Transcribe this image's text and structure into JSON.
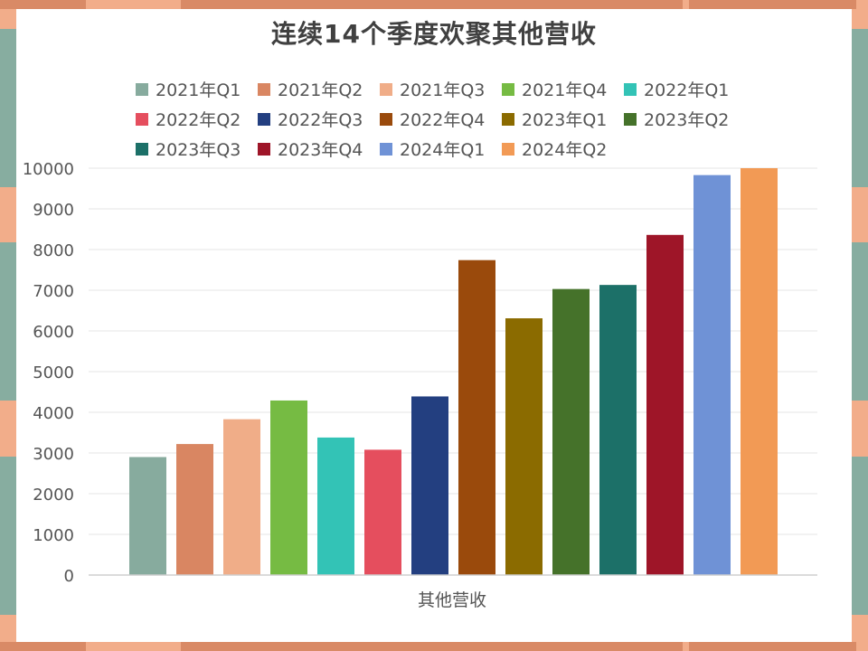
{
  "chart_data": {
    "type": "bar",
    "title": "连续14个季度欢聚其他营收",
    "categories": [
      "其他营收"
    ],
    "xlabel": "其他营收",
    "ylabel": "",
    "ylim": [
      0,
      10000
    ],
    "yticks": [
      0,
      1000,
      2000,
      3000,
      4000,
      5000,
      6000,
      7000,
      8000,
      9000,
      10000
    ],
    "grid": true,
    "legend_position": "top",
    "series": [
      {
        "name": "2021年Q1",
        "values": [
          2900
        ],
        "color": "#87ab9e"
      },
      {
        "name": "2021年Q2",
        "values": [
          3220
        ],
        "color": "#d98662"
      },
      {
        "name": "2021年Q3",
        "values": [
          3830
        ],
        "color": "#f0ad88"
      },
      {
        "name": "2021年Q4",
        "values": [
          4290
        ],
        "color": "#76bb43"
      },
      {
        "name": "2022年Q1",
        "values": [
          3380
        ],
        "color": "#33c3b6"
      },
      {
        "name": "2022年Q2",
        "values": [
          3080
        ],
        "color": "#e54e5e"
      },
      {
        "name": "2022年Q3",
        "values": [
          4390
        ],
        "color": "#233f80"
      },
      {
        "name": "2022年Q4",
        "values": [
          7740
        ],
        "color": "#9a4a0c"
      },
      {
        "name": "2023年Q1",
        "values": [
          6310
        ],
        "color": "#8b6b00"
      },
      {
        "name": "2023年Q2",
        "values": [
          7030
        ],
        "color": "#45722a"
      },
      {
        "name": "2023年Q3",
        "values": [
          7130
        ],
        "color": "#1c7068"
      },
      {
        "name": "2023年Q4",
        "values": [
          8360
        ],
        "color": "#9e1528"
      },
      {
        "name": "2024年Q1",
        "values": [
          9830
        ],
        "color": "#6f92d6"
      },
      {
        "name": "2024年Q2",
        "values": [
          10000
        ],
        "color": "#f29a55"
      }
    ]
  }
}
